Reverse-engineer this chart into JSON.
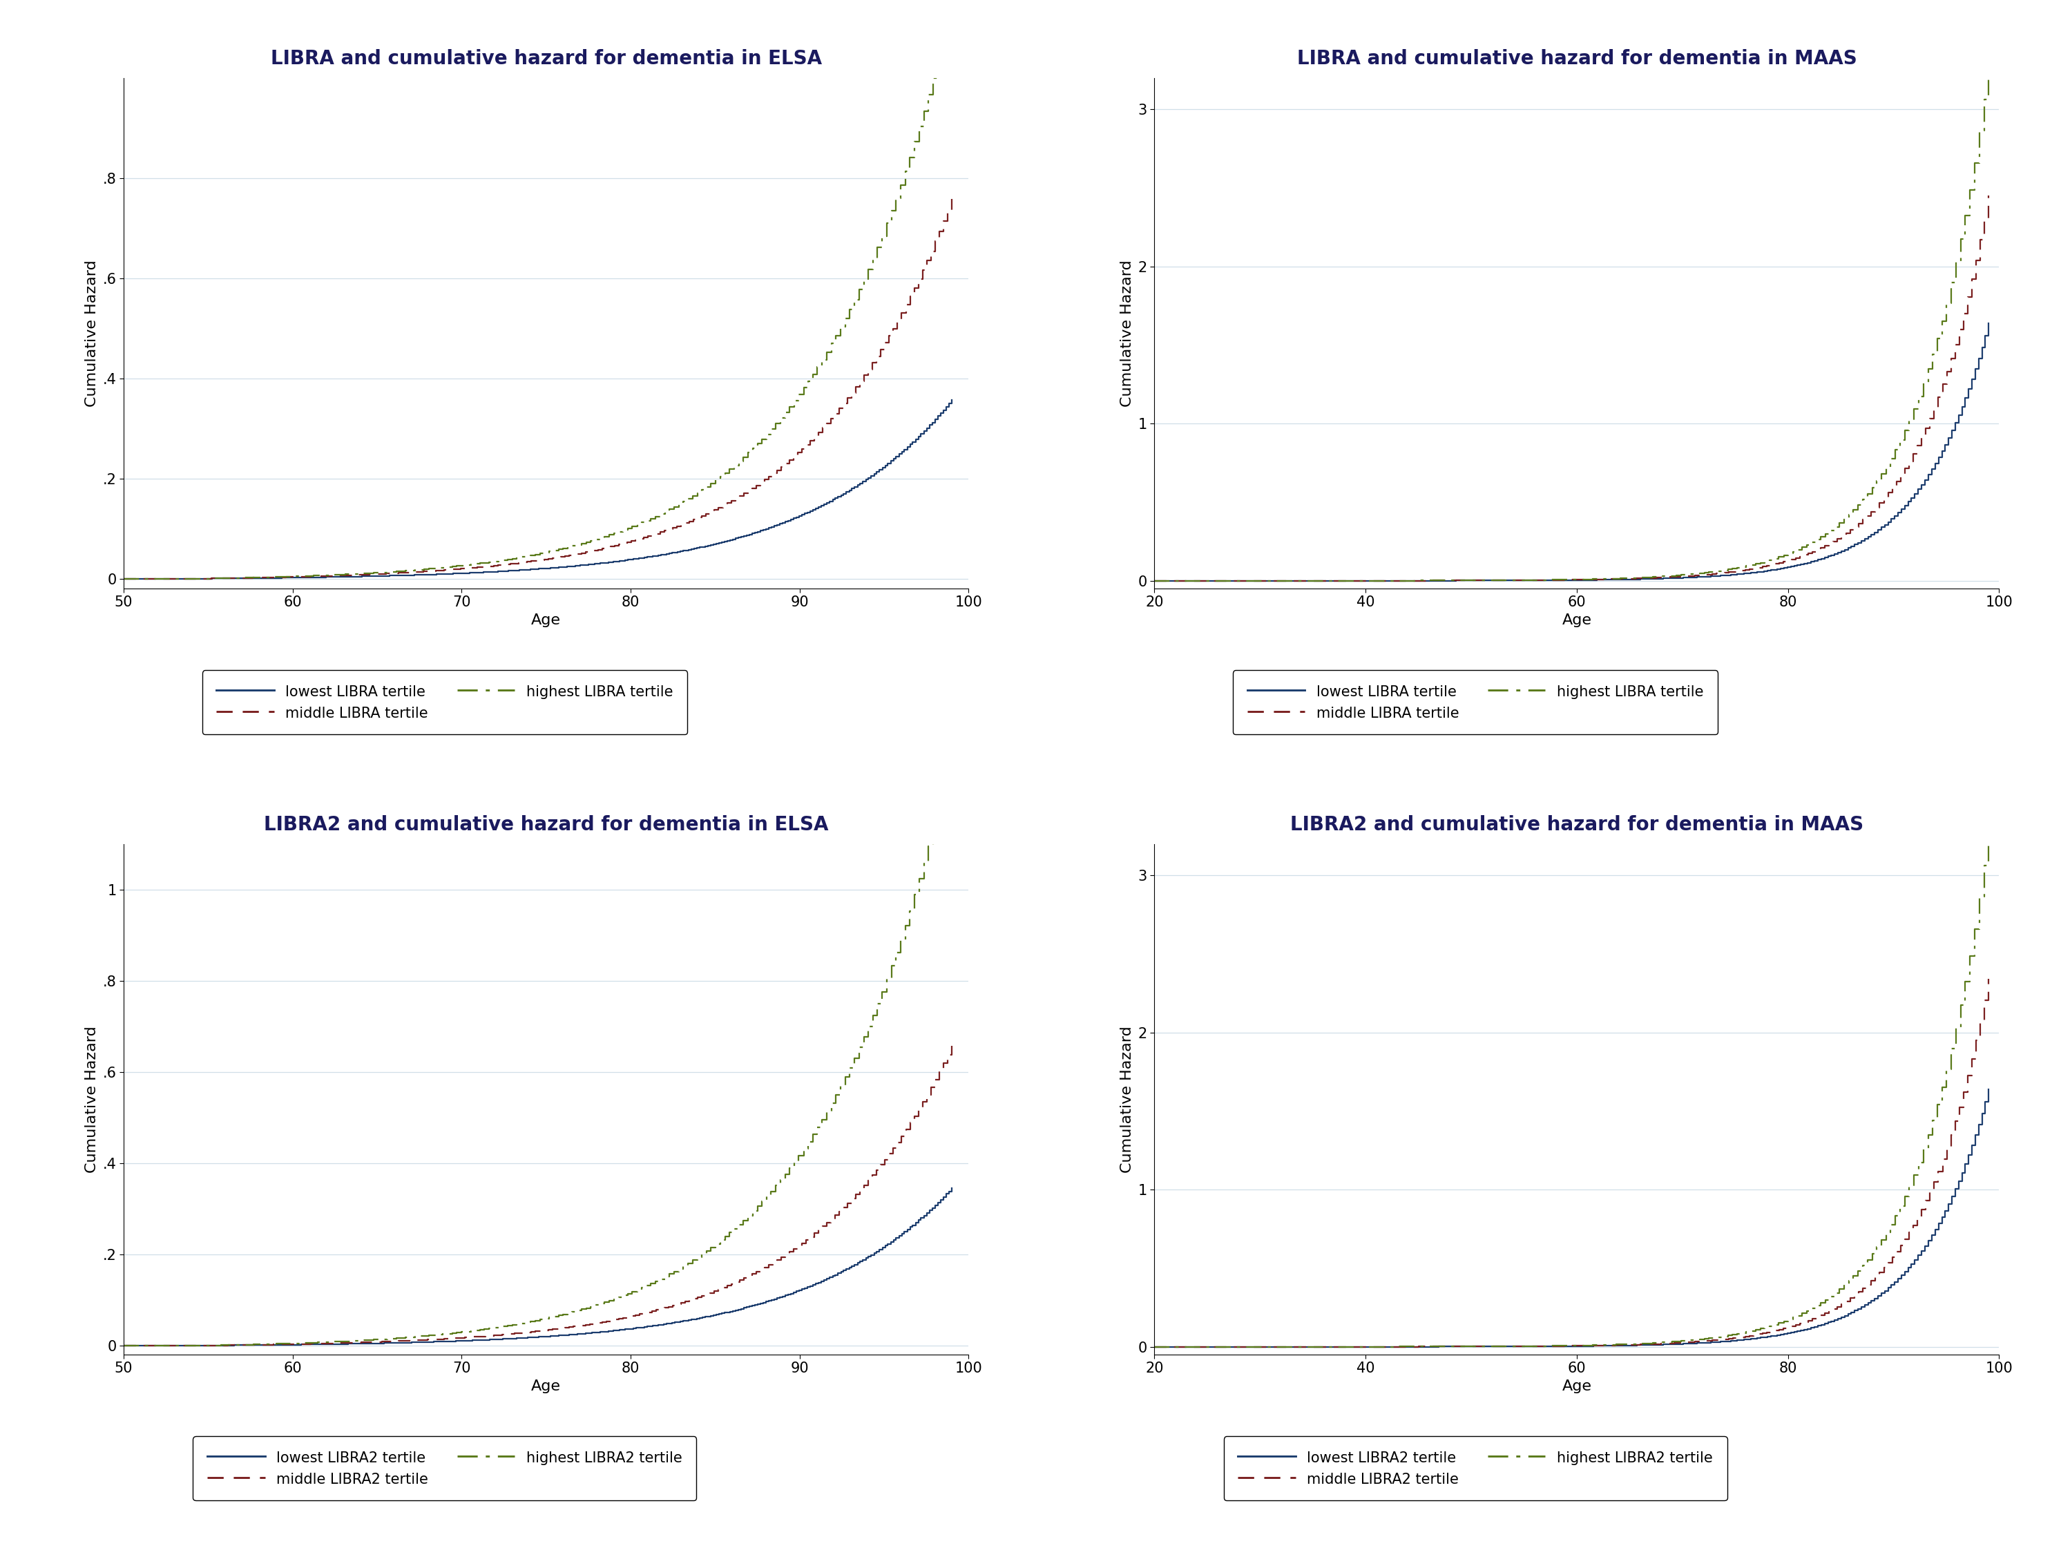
{
  "titles": [
    "LIBRA and cumulative hazard for dementia in ELSA",
    "LIBRA and cumulative hazard for dementia in MAAS",
    "LIBRA2 and cumulative hazard for dementia in ELSA",
    "LIBRA2 and cumulative hazard for dementia in MAAS"
  ],
  "xlabel": "Age",
  "ylabel": "Cumulative Hazard",
  "color_lowest": "#1c3d6e",
  "color_middle": "#7b2020",
  "color_highest": "#5a7a1a",
  "background_color": "#ffffff",
  "grid_color": "#d0dfe8",
  "title_fontsize": 20,
  "axis_fontsize": 16,
  "tick_fontsize": 15,
  "legend_fontsize": 15,
  "linewidth": 1.6,
  "elsa_xlim": [
    50,
    100
  ],
  "elsa_xticks": [
    50,
    60,
    70,
    80,
    90,
    100
  ],
  "maas_xlim": [
    20,
    100
  ],
  "maas_xticks": [
    20,
    40,
    60,
    80,
    100
  ],
  "elsa_libra_ylim": [
    -0.02,
    1.0
  ],
  "elsa_libra_yticks": [
    0,
    0.2,
    0.4,
    0.6,
    0.8
  ],
  "elsa_libra_ylabels": [
    "0",
    ".2",
    ".4",
    ".6",
    ".8"
  ],
  "maas_libra_ylim": [
    -0.05,
    3.2
  ],
  "maas_libra_yticks": [
    0,
    1,
    2,
    3
  ],
  "maas_libra_ylabels": [
    "0",
    "1",
    "2",
    "3"
  ],
  "elsa_libra2_ylim": [
    -0.02,
    1.1
  ],
  "elsa_libra2_yticks": [
    0,
    0.2,
    0.4,
    0.6,
    0.8,
    1.0
  ],
  "elsa_libra2_ylabels": [
    "0",
    ".2",
    ".4",
    ".6",
    ".8",
    "1"
  ],
  "maas_libra2_ylim": [
    -0.05,
    3.2
  ],
  "maas_libra2_yticks": [
    0,
    1,
    2,
    3
  ],
  "maas_libra2_ylabels": [
    "0",
    "1",
    "2",
    "3"
  ]
}
